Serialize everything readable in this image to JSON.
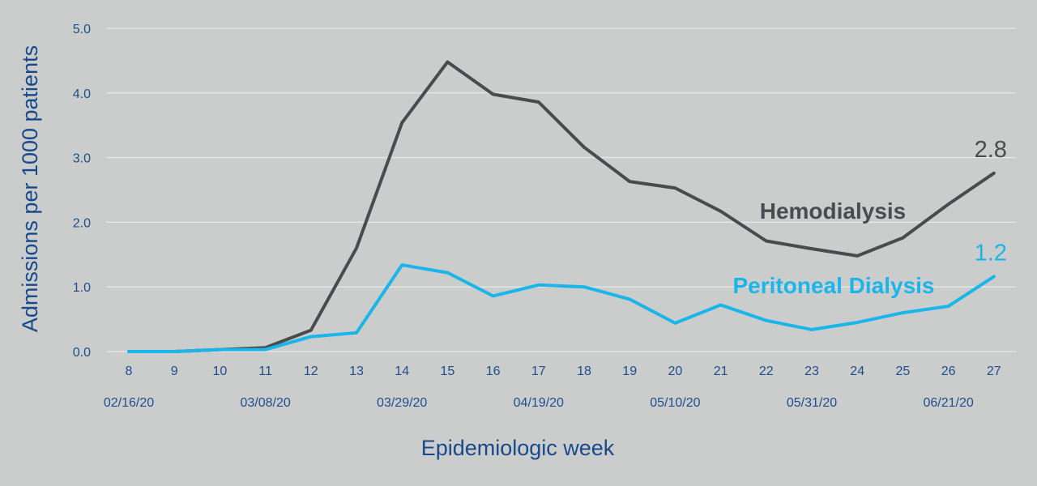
{
  "chart_data": {
    "type": "line",
    "xlabel": "Epidemiologic week",
    "ylabel": "Admissions per 1000 patients",
    "ylim": [
      0,
      5
    ],
    "y_ticks": [
      "0.0",
      "1.0",
      "2.0",
      "3.0",
      "4.0",
      "5.0"
    ],
    "grid": true,
    "categories": [
      "8",
      "9",
      "10",
      "11",
      "12",
      "13",
      "14",
      "15",
      "16",
      "17",
      "18",
      "19",
      "20",
      "21",
      "22",
      "23",
      "24",
      "25",
      "26",
      "27"
    ],
    "date_labels": [
      {
        "week": "8",
        "label": "02/16/20"
      },
      {
        "week": "11",
        "label": "03/08/20"
      },
      {
        "week": "14",
        "label": "03/29/20"
      },
      {
        "week": "17",
        "label": "04/19/20"
      },
      {
        "week": "20",
        "label": "05/10/20"
      },
      {
        "week": "23",
        "label": "05/31/20"
      },
      {
        "week": "26",
        "label": "06/21/20"
      }
    ],
    "series": [
      {
        "name": "Hemodialysis",
        "color": "#4a4b4e",
        "end_label": "2.8",
        "values": [
          0.0,
          0.0,
          0.03,
          0.06,
          0.33,
          1.6,
          3.54,
          4.48,
          3.98,
          3.86,
          3.16,
          2.63,
          2.53,
          2.17,
          1.71,
          1.59,
          1.48,
          1.76,
          2.28,
          2.76
        ]
      },
      {
        "name": "Peritoneal Dialysis",
        "color": "#1ab6ea",
        "end_label": "1.2",
        "values": [
          0.0,
          0.0,
          0.03,
          0.03,
          0.23,
          0.29,
          1.34,
          1.22,
          0.86,
          1.03,
          1.0,
          0.81,
          0.44,
          0.72,
          0.48,
          0.34,
          0.45,
          0.6,
          0.7,
          1.16
        ]
      }
    ]
  }
}
